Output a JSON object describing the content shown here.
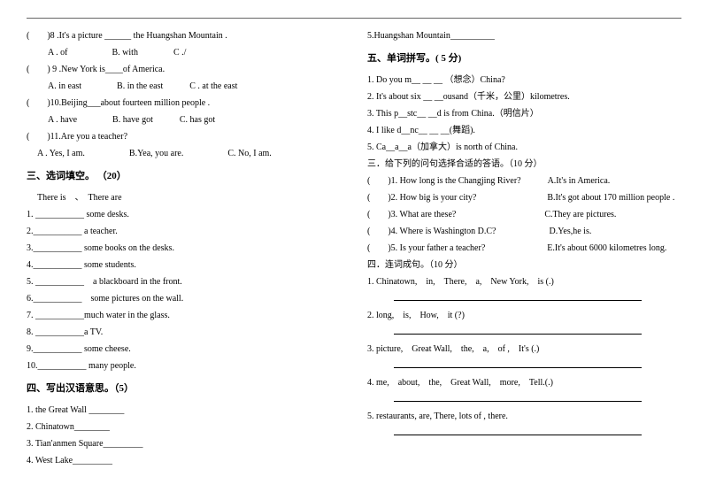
{
  "left": {
    "q8": "(　　)8 .It's a picture ______ the Huangshan Mountain .",
    "q8opts": "A . of　　　　　B. with　　　　C ./",
    "q9": "(　　) 9 .New York is____of America.",
    "q9opts": "A. in east　　　　B. in the east　　　C . at the east",
    "q10": "(　　)10.Beijing___about fourteen million people .",
    "q10opts": "A . have　　　　B. have got　　　C. has got",
    "q11": "(　　)11.Are you a teacher?",
    "q11opts": "A . Yes, I am.　　　　　B.Yea, you are.　　　　　C. No, I am.",
    "sec3": "三、选词填空。 （20）",
    "choices": "There is　、　There are",
    "f1": "1. ___________ some desks.",
    "f2": "2.___________ a teacher.",
    "f3": "3.___________ some books on the desks.",
    "f4": "4.___________ some students.",
    "f5": "5. ___________　a blackboard in the front.",
    "f6": "6.___________　some pictures on the wall.",
    "f7": "7. ___________much water in the glass.",
    "f8": "8. ___________a TV.",
    "f9": "9.___________ some cheese.",
    "f10": "10.___________ many people.",
    "sec4": "四、写出汉语意思。（5）",
    "m1": "1. the Great Wall ________",
    "m2": "2. Chinatown________",
    "m3": "3. Tian'anmen Square_________",
    "m4": "4. West Lake_________"
  },
  "right": {
    "m5": "5.Huangshan Mountain__________",
    "sec5": "五、单词拼写。( 5 分)",
    "s1": "1. Do you m__ __ __ （想念）China?",
    "s2": "2. It's about six __ __ousand（千米，公里）kilometres.",
    "s3": "3. This p__stc__ __d is from China.（明信片）",
    "s4": "4. I like d__nc__ __ __(舞蹈).",
    "s5": "5. Ca__a__a（加拿大）is north of China.",
    "sec6": "三．给下列的问句选择合适的答语。（10 分）",
    "p1": "(　　)1. How long is the Changjing River?　　　A.It's in America.",
    "p2": "(　　)2. How big is your city?　　　　　　　　B.It's got about 170 million people .",
    "p3": "(　　)3. What are these?　　　　　　　　　　C.They are pictures.",
    "p4": "(　　)4. Where is Washington D.C?　　　　　　D.Yes,he is.",
    "p5": "(　　)5. Is your father a teacher?　　　　　　　E.It's about 6000 kilometres long.",
    "sec7": "四．连词成句。（10 分）",
    "c1": "1. Chinatown,　in,　There,　a,　New York,　is (.)",
    "c2": "2. long,　is,　How,　it (?)",
    "c3": "3. picture,　Great Wall,　the,　a,　of ,　It's (.)",
    "c4": "4. me,　about,　the,　Great Wall,　more,　Tell.(.)",
    "c5": "5. restaurants, are, There, lots of , there."
  }
}
